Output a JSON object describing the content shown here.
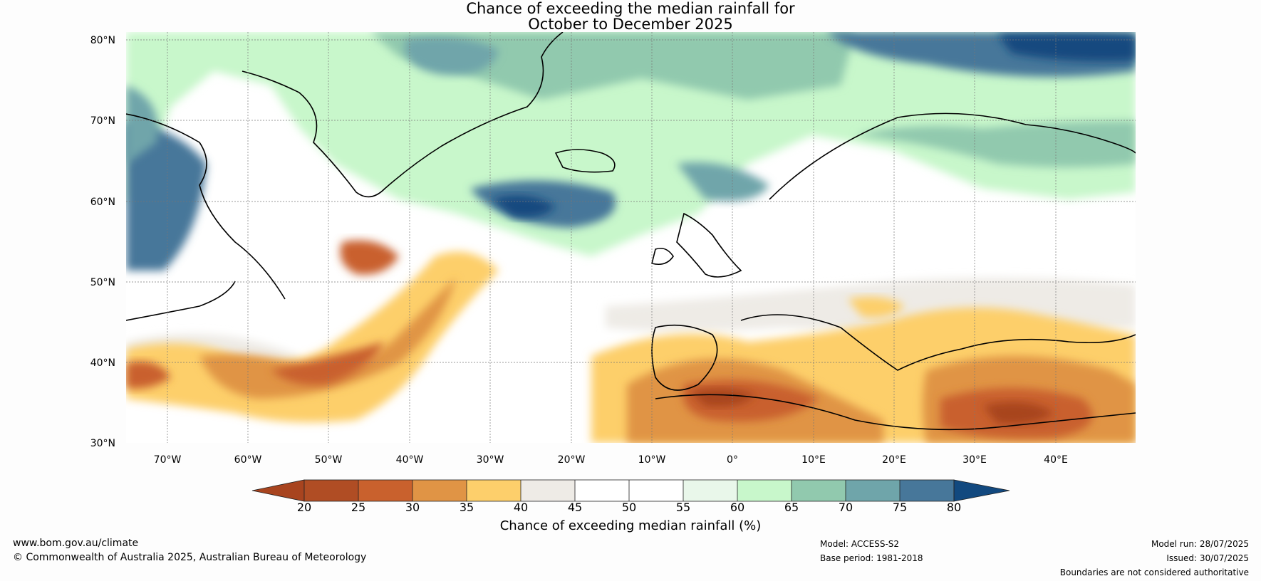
{
  "title": {
    "line1": "Chance of exceeding the median rainfall for",
    "line2": "October to December 2025"
  },
  "map": {
    "lat_labels": [
      "80°N",
      "70°N",
      "60°N",
      "50°N",
      "40°N",
      "30°N"
    ],
    "lon_labels": [
      "70°W",
      "60°W",
      "50°W",
      "40°W",
      "30°W",
      "20°W",
      "10°W",
      "0°",
      "10°E",
      "20°E",
      "30°E",
      "40°E"
    ]
  },
  "colorbar": {
    "ticks": [
      "20",
      "25",
      "30",
      "35",
      "40",
      "45",
      "50",
      "55",
      "60",
      "65",
      "70",
      "75",
      "80"
    ],
    "colors": [
      "#a8441f",
      "#b04d24",
      "#c9612d",
      "#e09445",
      "#fdcf6b",
      "#eeebe6",
      "#ffffff",
      "#ffffff",
      "#e9f7ea",
      "#c8f7cb",
      "#91c9ae",
      "#6fa5aa",
      "#47779a",
      "#12497f"
    ],
    "label": "Chance of exceeding median rainfall (%)"
  },
  "footer": {
    "website": "www.bom.gov.au/climate",
    "copyright": "© Commonwealth of Australia 2025, Australian Bureau of Meteorology",
    "model": "Model: ACCESS-S2",
    "base_period": "Base period: 1981-2018",
    "model_run": "Model run: 28/07/2025",
    "issued": "Issued: 30/07/2025",
    "boundaries": "Boundaries are not considered authoritative"
  }
}
